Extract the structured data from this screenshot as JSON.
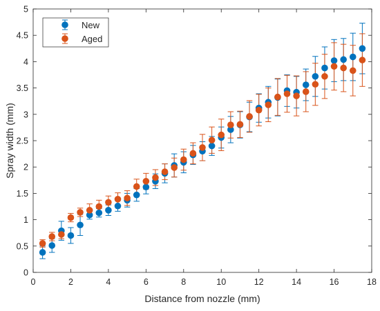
{
  "chart_data": {
    "type": "scatter",
    "title": "",
    "xlabel": "Distance from nozzle (mm)",
    "ylabel": "Spray width (mm)",
    "xlim": [
      0,
      18
    ],
    "ylim": [
      0,
      5
    ],
    "xticks": [
      0,
      2,
      4,
      6,
      8,
      10,
      12,
      14,
      16,
      18
    ],
    "yticks": [
      0,
      0.5,
      1,
      1.5,
      2,
      2.5,
      3,
      3.5,
      4,
      4.5,
      5
    ],
    "grid": false,
    "legend_position": "top-left",
    "error_bars": true,
    "series": [
      {
        "name": "New",
        "color": "#0072BD",
        "x": [
          0.5,
          1.0,
          1.5,
          2.0,
          2.5,
          3.0,
          3.5,
          4.0,
          4.5,
          5.0,
          5.5,
          6.0,
          6.5,
          7.0,
          7.5,
          8.0,
          8.5,
          9.0,
          9.5,
          10.0,
          10.5,
          11.0,
          11.5,
          12.0,
          12.5,
          13.0,
          13.5,
          14.0,
          14.5,
          15.0,
          15.5,
          16.0,
          16.5,
          17.0,
          17.5
        ],
        "y": [
          0.38,
          0.51,
          0.79,
          0.7,
          0.9,
          1.09,
          1.13,
          1.18,
          1.26,
          1.37,
          1.47,
          1.62,
          1.73,
          1.88,
          2.03,
          2.09,
          2.23,
          2.3,
          2.4,
          2.56,
          2.71,
          2.8,
          2.95,
          3.12,
          3.23,
          3.32,
          3.45,
          3.42,
          3.56,
          3.72,
          3.88,
          4.02,
          4.04,
          4.09,
          4.25
        ],
        "err": [
          0.12,
          0.13,
          0.18,
          0.15,
          0.2,
          0.08,
          0.08,
          0.1,
          0.1,
          0.13,
          0.12,
          0.13,
          0.14,
          0.18,
          0.22,
          0.2,
          0.18,
          0.18,
          0.18,
          0.2,
          0.25,
          0.25,
          0.28,
          0.27,
          0.3,
          0.35,
          0.3,
          0.3,
          0.3,
          0.38,
          0.4,
          0.4,
          0.4,
          0.45,
          0.48
        ]
      },
      {
        "name": "Aged",
        "color": "#D95319",
        "x": [
          0.5,
          1.0,
          1.5,
          2.0,
          2.5,
          3.0,
          3.5,
          4.0,
          4.5,
          5.0,
          5.5,
          6.0,
          6.5,
          7.0,
          7.5,
          8.0,
          8.5,
          9.0,
          9.5,
          10.0,
          10.5,
          11.0,
          11.5,
          12.0,
          12.5,
          13.0,
          13.5,
          14.0,
          14.5,
          15.0,
          15.5,
          16.0,
          16.5,
          17.0,
          17.5
        ],
        "y": [
          0.55,
          0.68,
          0.72,
          1.04,
          1.14,
          1.18,
          1.25,
          1.33,
          1.39,
          1.41,
          1.63,
          1.73,
          1.8,
          1.91,
          1.99,
          2.14,
          2.26,
          2.37,
          2.51,
          2.61,
          2.8,
          2.81,
          2.96,
          3.08,
          3.18,
          3.33,
          3.39,
          3.35,
          3.43,
          3.57,
          3.72,
          3.91,
          3.88,
          3.83,
          4.03
        ],
        "err": [
          0.07,
          0.08,
          0.08,
          0.08,
          0.08,
          0.12,
          0.12,
          0.12,
          0.12,
          0.14,
          0.14,
          0.15,
          0.15,
          0.15,
          0.18,
          0.2,
          0.2,
          0.25,
          0.25,
          0.3,
          0.25,
          0.25,
          0.3,
          0.3,
          0.32,
          0.35,
          0.35,
          0.38,
          0.38,
          0.4,
          0.42,
          0.45,
          0.45,
          0.48,
          0.5
        ]
      }
    ]
  }
}
